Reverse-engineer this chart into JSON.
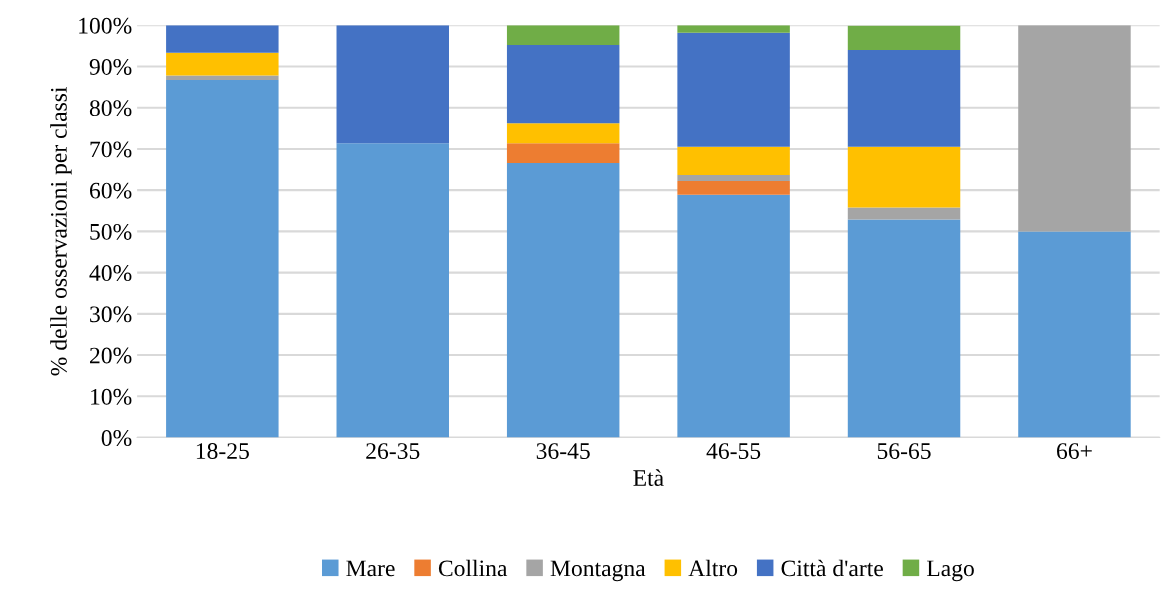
{
  "chart_data": {
    "type": "bar",
    "stacked": true,
    "xlabel": "Età",
    "ylabel": "% delle osservazioni per classi",
    "categories": [
      "18-25",
      "26-35",
      "36-45",
      "46-55",
      "56-65",
      "66+"
    ],
    "series": [
      {
        "name": "Mare",
        "color": "#5b9bd5",
        "values": [
          86.7,
          71.4,
          66.6,
          58.9,
          52.9,
          50
        ]
      },
      {
        "name": "Collina",
        "color": "#ed7d31",
        "values": [
          0,
          0,
          4.8,
          3.3,
          0,
          0
        ]
      },
      {
        "name": "Montagna",
        "color": "#a5a5a5",
        "values": [
          1.1,
          0,
          0,
          1.5,
          2.9,
          50
        ]
      },
      {
        "name": "Altro",
        "color": "#ffc000",
        "values": [
          5.5,
          0,
          4.8,
          6.8,
          14.7,
          0
        ]
      },
      {
        "name": "Città d'arte",
        "color": "#4472c4",
        "values": [
          6.7,
          28.6,
          19.0,
          27.7,
          23.5,
          0
        ]
      },
      {
        "name": "Lago",
        "color": "#70ad47",
        "values": [
          0,
          0,
          4.8,
          1.8,
          5.9,
          0
        ]
      }
    ],
    "ylim": [
      0,
      100
    ],
    "yticks": [
      {
        "value": 0,
        "label": "0%"
      },
      {
        "value": 10,
        "label": "10%"
      },
      {
        "value": 20,
        "label": "20%"
      },
      {
        "value": 30,
        "label": "30%"
      },
      {
        "value": 40,
        "label": "40%"
      },
      {
        "value": 50,
        "label": "50%"
      },
      {
        "value": 60,
        "label": "60%"
      },
      {
        "value": 70,
        "label": "70%"
      },
      {
        "value": 80,
        "label": "80%"
      },
      {
        "value": 90,
        "label": "90%"
      },
      {
        "value": 100,
        "label": "100%"
      }
    ],
    "grid": "y",
    "legend": "bottom"
  }
}
